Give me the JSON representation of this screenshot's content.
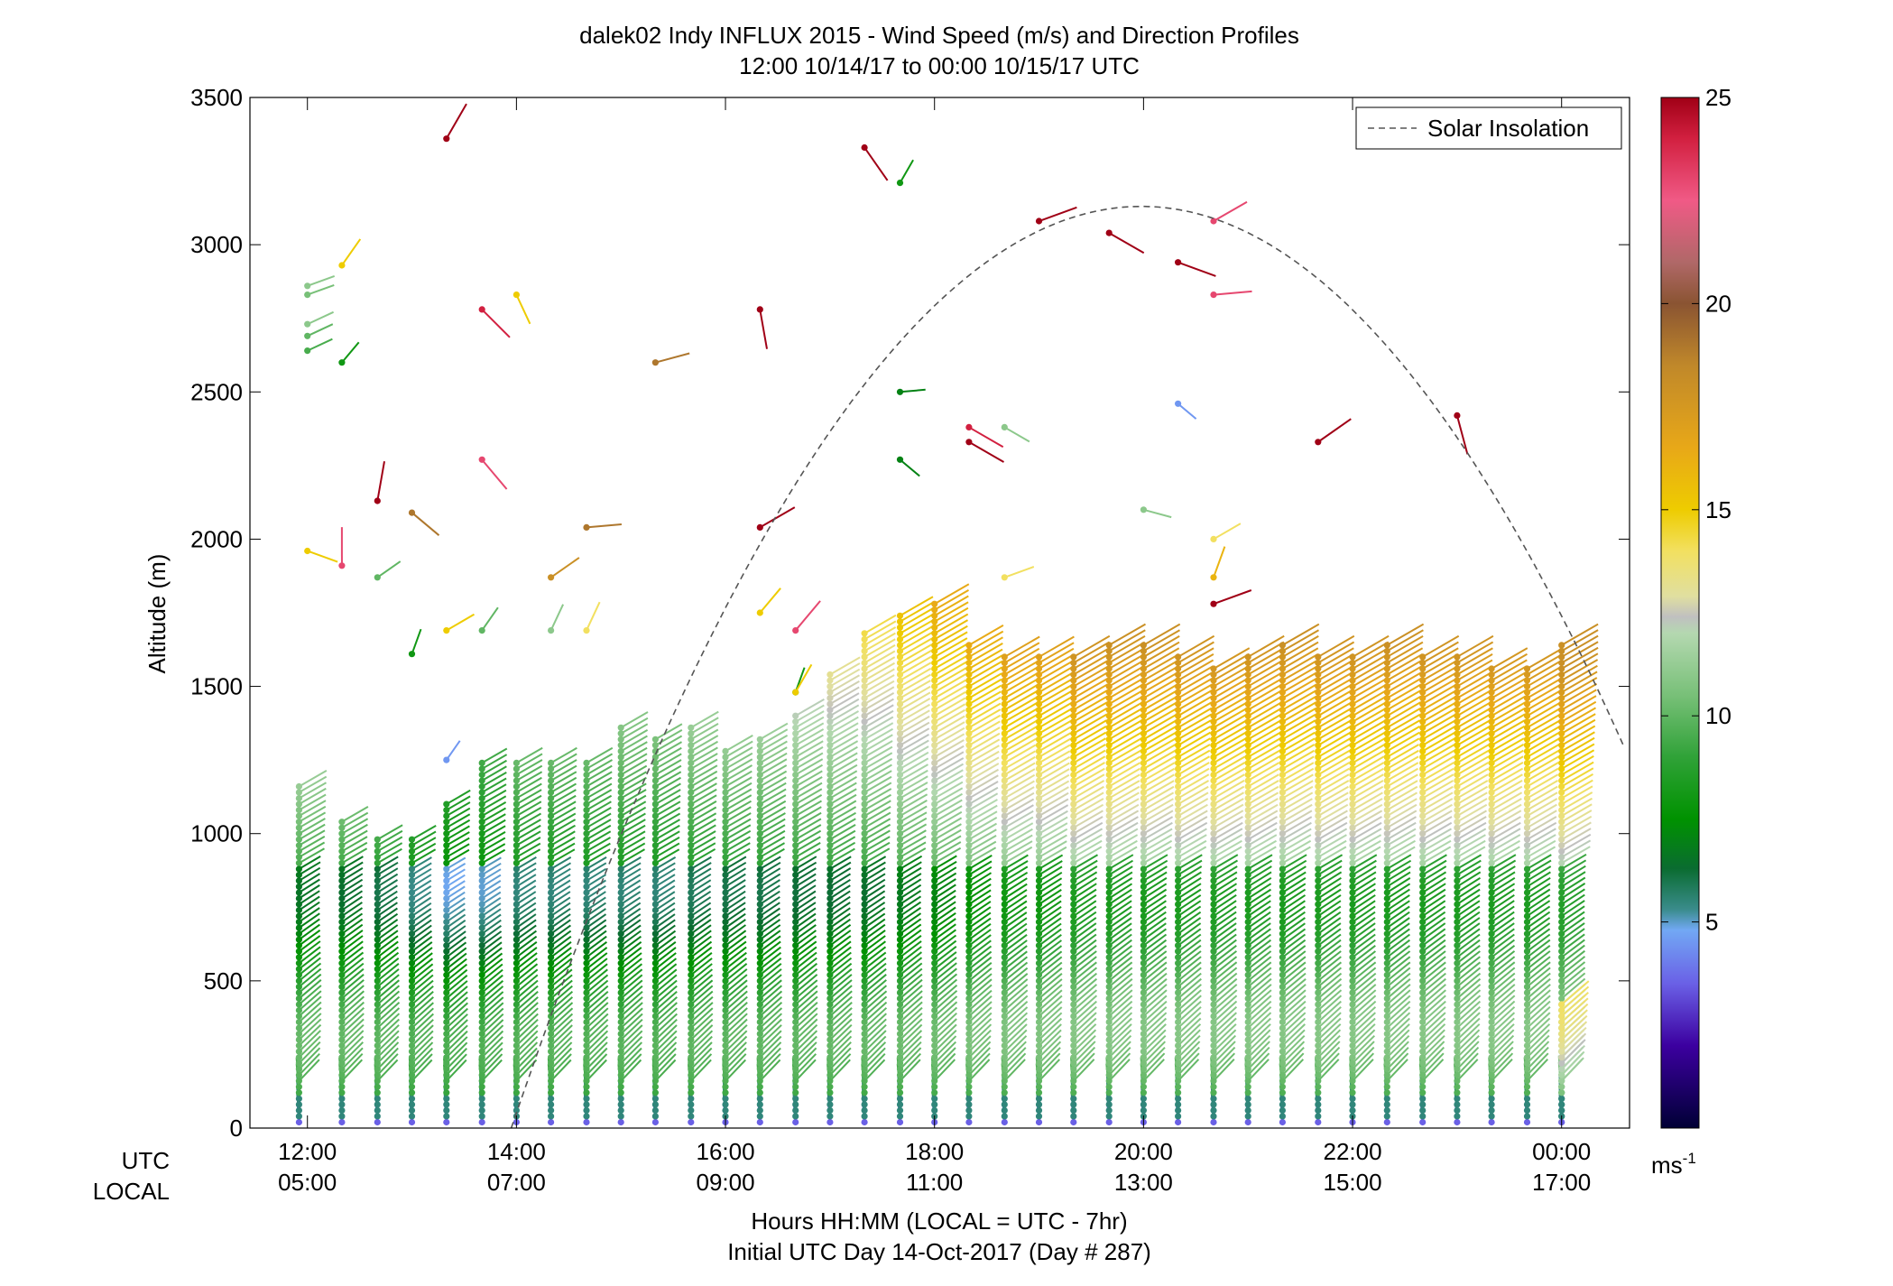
{
  "chart_data": {
    "type": "scatter",
    "title": "dalek02 Indy INFLUX 2015 - Wind Speed (m/s) and Direction Profiles",
    "subtitle": "12:00 10/14/17 to 00:00 10/15/17  UTC",
    "ylabel": "Altitude (m)",
    "xlabel": "Hours HH:MM  (LOCAL = UTC - 7hr)",
    "xlabel2": "Initial UTC Day 14-Oct-2017 (Day # 287)",
    "ylim": [
      0,
      3500
    ],
    "xlim_hours": [
      11.45,
      24.65
    ],
    "y_ticks": [
      0,
      500,
      1000,
      1500,
      2000,
      2500,
      3000,
      3500
    ],
    "x_ticks": [
      {
        "hour": 12,
        "utc": "12:00",
        "local": "05:00"
      },
      {
        "hour": 14,
        "utc": "14:00",
        "local": "07:00"
      },
      {
        "hour": 16,
        "utc": "16:00",
        "local": "09:00"
      },
      {
        "hour": 18,
        "utc": "18:00",
        "local": "11:00"
      },
      {
        "hour": 20,
        "utc": "20:00",
        "local": "13:00"
      },
      {
        "hour": 22,
        "utc": "22:00",
        "local": "15:00"
      },
      {
        "hour": 24,
        "utc": "00:00",
        "local": "17:00"
      }
    ],
    "row_labels": {
      "utc": "UTC",
      "local": "LOCAL"
    },
    "legend": {
      "entry": "Solar Insolation",
      "placement": "top-right",
      "color": "#555555"
    },
    "colorbar": {
      "range": [
        0,
        25
      ],
      "ticks": [
        5,
        10,
        15,
        20,
        25
      ],
      "unit": "ms",
      "unit_exp": "-1",
      "stops": [
        {
          "v": 0,
          "c": "#000035"
        },
        {
          "v": 2,
          "c": "#3c00a0"
        },
        {
          "v": 3.5,
          "c": "#6a60e6"
        },
        {
          "v": 4.8,
          "c": "#72a8f4"
        },
        {
          "v": 5.3,
          "c": "#3a8c8c"
        },
        {
          "v": 6.3,
          "c": "#0a6c30"
        },
        {
          "v": 7.5,
          "c": "#009200"
        },
        {
          "v": 9,
          "c": "#30a238"
        },
        {
          "v": 10.5,
          "c": "#78c078"
        },
        {
          "v": 12,
          "c": "#b4d8b0"
        },
        {
          "v": 12.4,
          "c": "#c0c0c0"
        },
        {
          "v": 12.9,
          "c": "#e0dfa0"
        },
        {
          "v": 14,
          "c": "#f2e060"
        },
        {
          "v": 15,
          "c": "#eecc00"
        },
        {
          "v": 16.5,
          "c": "#e8a818"
        },
        {
          "v": 18.5,
          "c": "#c0882a"
        },
        {
          "v": 20,
          "c": "#8a5432"
        },
        {
          "v": 21,
          "c": "#b06868"
        },
        {
          "v": 22.5,
          "c": "#f05a86"
        },
        {
          "v": 24,
          "c": "#d22040"
        },
        {
          "v": 25,
          "c": "#a00016"
        }
      ]
    },
    "insolation_curve": {
      "peak_hour": 19.98,
      "peak_altitude": 3130,
      "sunrise_hour": 13.95,
      "sunset_hour": 26.0
    },
    "profiles": [
      {
        "hour": 11.92,
        "top": 1170,
        "boost": 0.5
      },
      {
        "hour": 12.33,
        "top": 1050,
        "boost": 0.3
      },
      {
        "hour": 12.67,
        "top": 990,
        "boost": 0.0
      },
      {
        "hour": 13.0,
        "top": 990,
        "boost": -0.5
      },
      {
        "hour": 13.33,
        "top": 1100,
        "boost": -1.0
      },
      {
        "hour": 13.67,
        "top": 1250,
        "boost": -1.0
      },
      {
        "hour": 14.0,
        "top": 1250,
        "boost": -0.5
      },
      {
        "hour": 14.33,
        "top": 1250,
        "boost": -0.5
      },
      {
        "hour": 14.67,
        "top": 1250,
        "boost": -0.5
      },
      {
        "hour": 15.0,
        "top": 1370,
        "boost": -0.5
      },
      {
        "hour": 15.33,
        "top": 1330,
        "boost": -0.5
      },
      {
        "hour": 15.67,
        "top": 1370,
        "boost": -0.2
      },
      {
        "hour": 16.0,
        "top": 1290,
        "boost": 0.0
      },
      {
        "hour": 16.33,
        "top": 1330,
        "boost": 0.0
      },
      {
        "hour": 16.67,
        "top": 1410,
        "boost": 0.2
      },
      {
        "hour": 17.0,
        "top": 1540,
        "boost": 0.3
      },
      {
        "hour": 17.33,
        "top": 1690,
        "boost": 0.5
      },
      {
        "hour": 17.67,
        "top": 1740,
        "boost": 1.0
      },
      {
        "hour": 18.0,
        "top": 1780,
        "boost": 1.5
      },
      {
        "hour": 18.33,
        "top": 1650,
        "boost": 2.0
      },
      {
        "hour": 18.67,
        "top": 1610,
        "boost": 2.5
      },
      {
        "hour": 19.0,
        "top": 1610,
        "boost": 2.5
      },
      {
        "hour": 19.33,
        "top": 1610,
        "boost": 3.0
      },
      {
        "hour": 19.67,
        "top": 1650,
        "boost": 3.0
      },
      {
        "hour": 20.0,
        "top": 1650,
        "boost": 3.0
      },
      {
        "hour": 20.33,
        "top": 1610,
        "boost": 3.0
      },
      {
        "hour": 20.67,
        "top": 1570,
        "boost": 3.0
      },
      {
        "hour": 21.0,
        "top": 1610,
        "boost": 3.0
      },
      {
        "hour": 21.33,
        "top": 1650,
        "boost": 3.0
      },
      {
        "hour": 21.67,
        "top": 1610,
        "boost": 3.0
      },
      {
        "hour": 22.0,
        "top": 1610,
        "boost": 3.0
      },
      {
        "hour": 22.33,
        "top": 1650,
        "boost": 3.0
      },
      {
        "hour": 22.67,
        "top": 1610,
        "boost": 3.0
      },
      {
        "hour": 23.0,
        "top": 1610,
        "boost": 3.0
      },
      {
        "hour": 23.33,
        "top": 1570,
        "boost": 3.0
      },
      {
        "hour": 23.67,
        "top": 1570,
        "boost": 3.0
      },
      {
        "hour": 24.0,
        "top": 1650,
        "boost": 3.5
      },
      {
        "hour": 24.0,
        "top": 430,
        "boost": 3.0
      }
    ],
    "upper_barbs": [
      {
        "hour": 12.0,
        "alt": 2860,
        "speed": 11,
        "dir": 250
      },
      {
        "hour": 12.0,
        "alt": 2830,
        "speed": 10.5,
        "dir": 250
      },
      {
        "hour": 12.0,
        "alt": 2730,
        "speed": 11,
        "dir": 245
      },
      {
        "hour": 12.0,
        "alt": 2690,
        "speed": 10,
        "dir": 245
      },
      {
        "hour": 12.0,
        "alt": 2640,
        "speed": 9.5,
        "dir": 245
      },
      {
        "hour": 12.0,
        "alt": 1960,
        "speed": 15,
        "dir": 290
      },
      {
        "hour": 12.33,
        "alt": 2930,
        "speed": 15,
        "dir": 215
      },
      {
        "hour": 12.33,
        "alt": 2600,
        "speed": 8,
        "dir": 220
      },
      {
        "hour": 12.33,
        "alt": 1910,
        "speed": 23,
        "dir": 180
      },
      {
        "hour": 12.67,
        "alt": 2130,
        "speed": 25,
        "dir": 190
      },
      {
        "hour": 12.67,
        "alt": 1870,
        "speed": 10,
        "dir": 235
      },
      {
        "hour": 13.0,
        "alt": 2090,
        "speed": 19,
        "dir": 310
      },
      {
        "hour": 13.0,
        "alt": 1610,
        "speed": 8,
        "dir": 200
      },
      {
        "hour": 13.33,
        "alt": 3360,
        "speed": 25,
        "dir": 210
      },
      {
        "hour": 13.33,
        "alt": 1690,
        "speed": 15,
        "dir": 240
      },
      {
        "hour": 13.33,
        "alt": 1250,
        "speed": 4.5,
        "dir": 215
      },
      {
        "hour": 13.67,
        "alt": 2780,
        "speed": 24,
        "dir": 315
      },
      {
        "hour": 13.67,
        "alt": 2270,
        "speed": 23,
        "dir": 320
      },
      {
        "hour": 13.67,
        "alt": 1690,
        "speed": 10,
        "dir": 215
      },
      {
        "hour": 14.0,
        "alt": 2830,
        "speed": 15,
        "dir": 335
      },
      {
        "hour": 14.33,
        "alt": 1870,
        "speed": 18,
        "dir": 235
      },
      {
        "hour": 14.33,
        "alt": 1690,
        "speed": 11,
        "dir": 205
      },
      {
        "hour": 14.67,
        "alt": 2040,
        "speed": 19,
        "dir": 265
      },
      {
        "hour": 14.67,
        "alt": 1690,
        "speed": 14,
        "dir": 205
      },
      {
        "hour": 15.33,
        "alt": 2600,
        "speed": 19,
        "dir": 255
      },
      {
        "hour": 16.33,
        "alt": 2780,
        "speed": 25,
        "dir": 350
      },
      {
        "hour": 16.33,
        "alt": 2040,
        "speed": 25,
        "dir": 240
      },
      {
        "hour": 16.33,
        "alt": 1750,
        "speed": 15,
        "dir": 220
      },
      {
        "hour": 16.67,
        "alt": 1690,
        "speed": 23,
        "dir": 220
      },
      {
        "hour": 16.67,
        "alt": 1480,
        "speed": 8,
        "dir": 200
      },
      {
        "hour": 16.67,
        "alt": 1480,
        "speed": 15,
        "dir": 210
      },
      {
        "hour": 17.33,
        "alt": 3330,
        "speed": 25,
        "dir": 325
      },
      {
        "hour": 17.67,
        "alt": 3210,
        "speed": 8,
        "dir": 210
      },
      {
        "hour": 17.67,
        "alt": 2500,
        "speed": 7,
        "dir": 265
      },
      {
        "hour": 17.67,
        "alt": 2270,
        "speed": 7,
        "dir": 310
      },
      {
        "hour": 18.33,
        "alt": 2380,
        "speed": 24,
        "dir": 300
      },
      {
        "hour": 18.33,
        "alt": 2330,
        "speed": 25,
        "dir": 300
      },
      {
        "hour": 18.67,
        "alt": 2380,
        "speed": 11,
        "dir": 300
      },
      {
        "hour": 18.67,
        "alt": 1870,
        "speed": 14,
        "dir": 250
      },
      {
        "hour": 19.0,
        "alt": 3080,
        "speed": 25,
        "dir": 250
      },
      {
        "hour": 19.67,
        "alt": 3040,
        "speed": 25,
        "dir": 300
      },
      {
        "hour": 20.0,
        "alt": 2100,
        "speed": 11,
        "dir": 285
      },
      {
        "hour": 20.33,
        "alt": 2940,
        "speed": 25,
        "dir": 290
      },
      {
        "hour": 20.33,
        "alt": 2460,
        "speed": 4.5,
        "dir": 310
      },
      {
        "hour": 20.67,
        "alt": 2830,
        "speed": 23,
        "dir": 265
      },
      {
        "hour": 20.67,
        "alt": 3080,
        "speed": 23,
        "dir": 240
      },
      {
        "hour": 20.67,
        "alt": 2000,
        "speed": 14,
        "dir": 240
      },
      {
        "hour": 20.67,
        "alt": 1870,
        "speed": 16,
        "dir": 200
      },
      {
        "hour": 20.67,
        "alt": 1780,
        "speed": 25,
        "dir": 250
      },
      {
        "hour": 21.67,
        "alt": 2330,
        "speed": 25,
        "dir": 235
      },
      {
        "hour": 23.0,
        "alt": 2420,
        "speed": 25,
        "dir": 345
      }
    ]
  }
}
